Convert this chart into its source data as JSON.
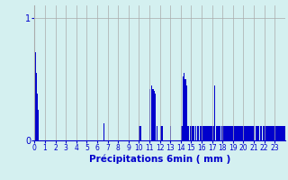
{
  "title": "",
  "xlabel": "Précipitations 6min ( mm )",
  "ylabel": "",
  "background_color": "#d4f0f0",
  "bar_color": "#0000cc",
  "grid_color": "#aaaaaa",
  "ylim": [
    0,
    1.1
  ],
  "yticks": [
    0,
    1
  ],
  "values": [
    0.72,
    0.55,
    0.38,
    0.25,
    0.0,
    0.0,
    0.0,
    0.0,
    0.0,
    0.0,
    0.0,
    0.0,
    0.0,
    0.0,
    0.0,
    0.0,
    0.0,
    0.0,
    0.0,
    0.0,
    0.0,
    0.0,
    0.0,
    0.0,
    0.0,
    0.0,
    0.0,
    0.0,
    0.0,
    0.0,
    0.0,
    0.0,
    0.0,
    0.0,
    0.0,
    0.0,
    0.0,
    0.0,
    0.0,
    0.0,
    0.0,
    0.0,
    0.0,
    0.0,
    0.0,
    0.0,
    0.0,
    0.0,
    0.0,
    0.0,
    0.0,
    0.0,
    0.0,
    0.0,
    0.0,
    0.0,
    0.0,
    0.0,
    0.0,
    0.0,
    0.0,
    0.0,
    0.0,
    0.0,
    0.0,
    0.0,
    0.14,
    0.0,
    0.0,
    0.0,
    0.0,
    0.0,
    0.0,
    0.0,
    0.0,
    0.0,
    0.0,
    0.0,
    0.0,
    0.0,
    0.0,
    0.0,
    0.0,
    0.0,
    0.0,
    0.0,
    0.0,
    0.0,
    0.0,
    0.0,
    0.0,
    0.0,
    0.0,
    0.0,
    0.0,
    0.0,
    0.0,
    0.0,
    0.0,
    0.0,
    0.12,
    0.12,
    0.0,
    0.0,
    0.0,
    0.0,
    0.0,
    0.0,
    0.0,
    0.0,
    0.42,
    0.0,
    0.45,
    0.42,
    0.4,
    0.38,
    0.0,
    0.12,
    0.0,
    0.0,
    0.12,
    0.12,
    0.12,
    0.0,
    0.0,
    0.0,
    0.0,
    0.0,
    0.0,
    0.0,
    0.12,
    0.0,
    0.0,
    0.0,
    0.0,
    0.0,
    0.0,
    0.0,
    0.0,
    0.0,
    0.12,
    0.12,
    0.52,
    0.55,
    0.5,
    0.45,
    0.12,
    0.12,
    0.0,
    0.12,
    0.12,
    0.12,
    0.12,
    0.0,
    0.12,
    0.0,
    0.12,
    0.0,
    0.12,
    0.12,
    0.12,
    0.12,
    0.12,
    0.12,
    0.12,
    0.12,
    0.12,
    0.12,
    0.12,
    0.12,
    0.12,
    0.12,
    0.45,
    0.0,
    0.12,
    0.12,
    0.12,
    0.12,
    0.0,
    0.12,
    0.12,
    0.12,
    0.12,
    0.12,
    0.12,
    0.12,
    0.12,
    0.12,
    0.12,
    0.12,
    0.12,
    0.12,
    0.12,
    0.12,
    0.12,
    0.12,
    0.12,
    0.12,
    0.12,
    0.12,
    0.12,
    0.12,
    0.12,
    0.12,
    0.12,
    0.12,
    0.12,
    0.12,
    0.12,
    0.12,
    0.12,
    0.0,
    0.12,
    0.12,
    0.12,
    0.0,
    0.12,
    0.12,
    0.0,
    0.12,
    0.12,
    0.12,
    0.12,
    0.12,
    0.12,
    0.12,
    0.12,
    0.12,
    0.12,
    0.12,
    0.12,
    0.12,
    0.12,
    0.12,
    0.12,
    0.12,
    0.12,
    0.12,
    0.12,
    0.12
  ],
  "xtick_positions": [
    0,
    10,
    20,
    30,
    40,
    50,
    60,
    70,
    80,
    90,
    100,
    110,
    120,
    130,
    140,
    150,
    160,
    170,
    180,
    190,
    200,
    210,
    220,
    230
  ],
  "xtick_labels": [
    "0",
    "1",
    "2",
    "3",
    "4",
    "5",
    "6",
    "7",
    "8",
    "9",
    "10",
    "11",
    "12",
    "13",
    "14",
    "15",
    "16",
    "17",
    "18",
    "19",
    "20",
    "21",
    "22",
    "23"
  ]
}
